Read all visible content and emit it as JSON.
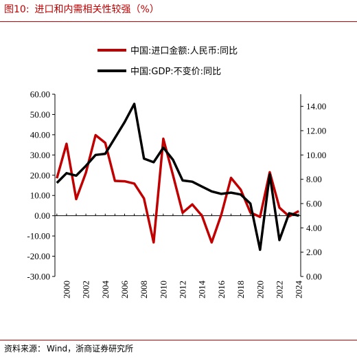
{
  "header": {
    "figure_label": "图10:",
    "title": "进口和内需相关性较强（%）"
  },
  "source": {
    "label": "资料来源：",
    "text": "Wind，浙商证券研究所"
  },
  "colors": {
    "accent": "#c00000",
    "series_import": "#c00000",
    "series_gdp": "#000000"
  },
  "chart_data": {
    "type": "line",
    "x": [
      1999,
      2000,
      2001,
      2002,
      2003,
      2004,
      2005,
      2006,
      2007,
      2008,
      2009,
      2010,
      2011,
      2012,
      2013,
      2014,
      2015,
      2016,
      2017,
      2018,
      2019,
      2020,
      2021,
      2022,
      2023,
      2024
    ],
    "x_tick_labels": [
      "2000",
      "2002",
      "2004",
      "2006",
      "2008",
      "2010",
      "2012",
      "2014",
      "2016",
      "2018",
      "2020",
      "2022",
      "2024"
    ],
    "x_tick_values": [
      2000,
      2002,
      2004,
      2006,
      2008,
      2010,
      2012,
      2014,
      2016,
      2018,
      2020,
      2022,
      2024
    ],
    "y_left_lim": [
      -30,
      60
    ],
    "y_left_ticks": [
      -30,
      -20,
      -10,
      0,
      10,
      20,
      30,
      40,
      50,
      60
    ],
    "y_left_tick_labels": [
      "-30.00",
      "-20.00",
      "-10.00",
      "0.00",
      "10.00",
      "20.00",
      "30.00",
      "40.00",
      "50.00",
      "60.00"
    ],
    "y_right_lim": [
      0,
      15
    ],
    "y_right_ticks": [
      0,
      2,
      4,
      6,
      8,
      10,
      12,
      14
    ],
    "y_right_tick_labels": [
      "0.00",
      "2.00",
      "4.00",
      "6.00",
      "8.00",
      "10.00",
      "12.00",
      "14.00"
    ],
    "legend_position": "top-left",
    "series": [
      {
        "name": "中国:进口金额:人民币:同比",
        "axis": "left",
        "color": "#c00000",
        "values": [
          18.5,
          35.5,
          8.2,
          21.2,
          39.8,
          36.0,
          17.2,
          17.0,
          15.9,
          8.5,
          -13.2,
          38.0,
          20.0,
          1.5,
          5.6,
          0.0,
          -13.2,
          0.6,
          18.7,
          12.9,
          1.6,
          -0.6,
          21.5,
          4.0,
          -0.3,
          2.3
        ]
      },
      {
        "name": "中国:GDP:不变价:同比",
        "axis": "right",
        "color": "#000000",
        "values": [
          7.7,
          8.5,
          8.3,
          9.1,
          10.0,
          10.1,
          11.4,
          12.7,
          14.2,
          9.7,
          9.4,
          10.6,
          9.6,
          7.9,
          7.8,
          7.4,
          7.0,
          6.8,
          6.9,
          6.75,
          6.0,
          2.2,
          8.4,
          3.0,
          5.2,
          5.0
        ]
      }
    ]
  }
}
